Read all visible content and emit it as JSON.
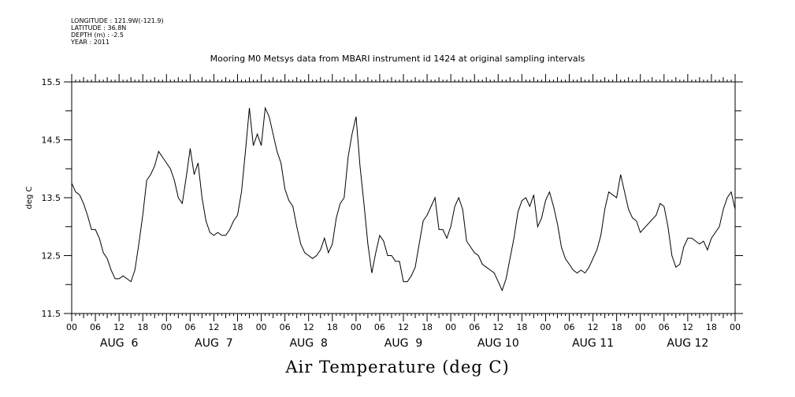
{
  "meta": {
    "longitude": "LONGITUDE : 121.9W(-121.9)",
    "latitude": "LATITUDE : 36.8N",
    "depth": "DEPTH (m) : -2.5",
    "year": "YEAR : 2011"
  },
  "chart_data": {
    "type": "line",
    "title": "Mooring M0 Metsys data from MBARI instrument id 1424 at original sampling intervals",
    "xlabel": "Air Temperature (deg C)",
    "ylabel": "deg C",
    "ylim": [
      11.5,
      15.5
    ],
    "xlim_hours": [
      0,
      168
    ],
    "y_ticks": [
      "11.5",
      "12.5",
      "13.5",
      "14.5",
      "15.5"
    ],
    "hour_tick_labels": [
      "00",
      "06",
      "12",
      "18"
    ],
    "day_labels": [
      "AUG  6",
      "AUG  7",
      "AUG  8",
      "AUG  9",
      "AUG 10",
      "AUG 11",
      "AUG 12"
    ],
    "grid": false,
    "legend": "none",
    "series": [
      {
        "points": [
          [
            0,
            13.75
          ],
          [
            1,
            13.6
          ],
          [
            2,
            13.55
          ],
          [
            3,
            13.4
          ],
          [
            4,
            13.2
          ],
          [
            5,
            12.95
          ],
          [
            6,
            12.95
          ],
          [
            7,
            12.8
          ],
          [
            8,
            12.55
          ],
          [
            9,
            12.45
          ],
          [
            10,
            12.25
          ],
          [
            11,
            12.1
          ],
          [
            12,
            12.1
          ],
          [
            13,
            12.15
          ],
          [
            14,
            12.1
          ],
          [
            15,
            12.05
          ],
          [
            16,
            12.25
          ],
          [
            17,
            12.7
          ],
          [
            18,
            13.2
          ],
          [
            19,
            13.8
          ],
          [
            20,
            13.9
          ],
          [
            21,
            14.05
          ],
          [
            22,
            14.3
          ],
          [
            23,
            14.2
          ],
          [
            24,
            14.1
          ],
          [
            25,
            14.0
          ],
          [
            26,
            13.8
          ],
          [
            27,
            13.5
          ],
          [
            28,
            13.4
          ],
          [
            29,
            13.85
          ],
          [
            30,
            14.35
          ],
          [
            31,
            13.9
          ],
          [
            32,
            14.1
          ],
          [
            33,
            13.5
          ],
          [
            34,
            13.1
          ],
          [
            35,
            12.9
          ],
          [
            36,
            12.85
          ],
          [
            37,
            12.9
          ],
          [
            38,
            12.85
          ],
          [
            39,
            12.85
          ],
          [
            40,
            12.95
          ],
          [
            41,
            13.1
          ],
          [
            42,
            13.2
          ],
          [
            43,
            13.6
          ],
          [
            44,
            14.3
          ],
          [
            45,
            15.05
          ],
          [
            46,
            14.4
          ],
          [
            47,
            14.6
          ],
          [
            48,
            14.4
          ],
          [
            49,
            15.05
          ],
          [
            50,
            14.9
          ],
          [
            51,
            14.6
          ],
          [
            52,
            14.3
          ],
          [
            53,
            14.1
          ],
          [
            54,
            13.65
          ],
          [
            55,
            13.45
          ],
          [
            56,
            13.35
          ],
          [
            57,
            13.0
          ],
          [
            58,
            12.7
          ],
          [
            59,
            12.55
          ],
          [
            60,
            12.5
          ],
          [
            61,
            12.45
          ],
          [
            62,
            12.5
          ],
          [
            63,
            12.6
          ],
          [
            64,
            12.8
          ],
          [
            65,
            12.55
          ],
          [
            66,
            12.7
          ],
          [
            67,
            13.15
          ],
          [
            68,
            13.4
          ],
          [
            69,
            13.5
          ],
          [
            70,
            14.2
          ],
          [
            71,
            14.6
          ],
          [
            72,
            14.9
          ],
          [
            73,
            14.05
          ],
          [
            74,
            13.4
          ],
          [
            75,
            12.7
          ],
          [
            76,
            12.2
          ],
          [
            77,
            12.55
          ],
          [
            78,
            12.85
          ],
          [
            79,
            12.75
          ],
          [
            80,
            12.5
          ],
          [
            81,
            12.5
          ],
          [
            82,
            12.4
          ],
          [
            83,
            12.4
          ],
          [
            84,
            12.05
          ],
          [
            85,
            12.05
          ],
          [
            86,
            12.15
          ],
          [
            87,
            12.3
          ],
          [
            88,
            12.7
          ],
          [
            89,
            13.1
          ],
          [
            90,
            13.2
          ],
          [
            91,
            13.35
          ],
          [
            92,
            13.5
          ],
          [
            93,
            12.95
          ],
          [
            94,
            12.95
          ],
          [
            95,
            12.8
          ],
          [
            96,
            13.0
          ],
          [
            97,
            13.35
          ],
          [
            98,
            13.5
          ],
          [
            99,
            13.3
          ],
          [
            100,
            12.75
          ],
          [
            101,
            12.65
          ],
          [
            102,
            12.55
          ],
          [
            103,
            12.5
          ],
          [
            104,
            12.35
          ],
          [
            105,
            12.3
          ],
          [
            106,
            12.25
          ],
          [
            107,
            12.2
          ],
          [
            108,
            12.05
          ],
          [
            109,
            11.9
          ],
          [
            110,
            12.1
          ],
          [
            111,
            12.45
          ],
          [
            112,
            12.8
          ],
          [
            113,
            13.25
          ],
          [
            114,
            13.45
          ],
          [
            115,
            13.5
          ],
          [
            116,
            13.35
          ],
          [
            117,
            13.55
          ],
          [
            118,
            13.0
          ],
          [
            119,
            13.15
          ],
          [
            120,
            13.45
          ],
          [
            121,
            13.6
          ],
          [
            122,
            13.35
          ],
          [
            123,
            13.05
          ],
          [
            124,
            12.65
          ],
          [
            125,
            12.45
          ],
          [
            126,
            12.35
          ],
          [
            127,
            12.25
          ],
          [
            128,
            12.2
          ],
          [
            129,
            12.25
          ],
          [
            130,
            12.2
          ],
          [
            131,
            12.3
          ],
          [
            132,
            12.45
          ],
          [
            133,
            12.6
          ],
          [
            134,
            12.85
          ],
          [
            135,
            13.3
          ],
          [
            136,
            13.6
          ],
          [
            137,
            13.55
          ],
          [
            138,
            13.5
          ],
          [
            139,
            13.9
          ],
          [
            140,
            13.6
          ],
          [
            141,
            13.3
          ],
          [
            142,
            13.15
          ],
          [
            143,
            13.1
          ],
          [
            144,
            12.9
          ],
          [
            148,
            13.2
          ],
          [
            149,
            13.4
          ],
          [
            150,
            13.35
          ],
          [
            151,
            13.0
          ],
          [
            152,
            12.5
          ],
          [
            153,
            12.3
          ],
          [
            154,
            12.35
          ],
          [
            155,
            12.65
          ],
          [
            156,
            12.8
          ],
          [
            157,
            12.8
          ],
          [
            158,
            12.75
          ],
          [
            159,
            12.7
          ],
          [
            160,
            12.75
          ],
          [
            161,
            12.6
          ],
          [
            162,
            12.8
          ],
          [
            163,
            12.9
          ],
          [
            164,
            13.0
          ],
          [
            165,
            13.3
          ],
          [
            166,
            13.5
          ],
          [
            167,
            13.6
          ],
          [
            168,
            13.3
          ]
        ]
      }
    ]
  }
}
